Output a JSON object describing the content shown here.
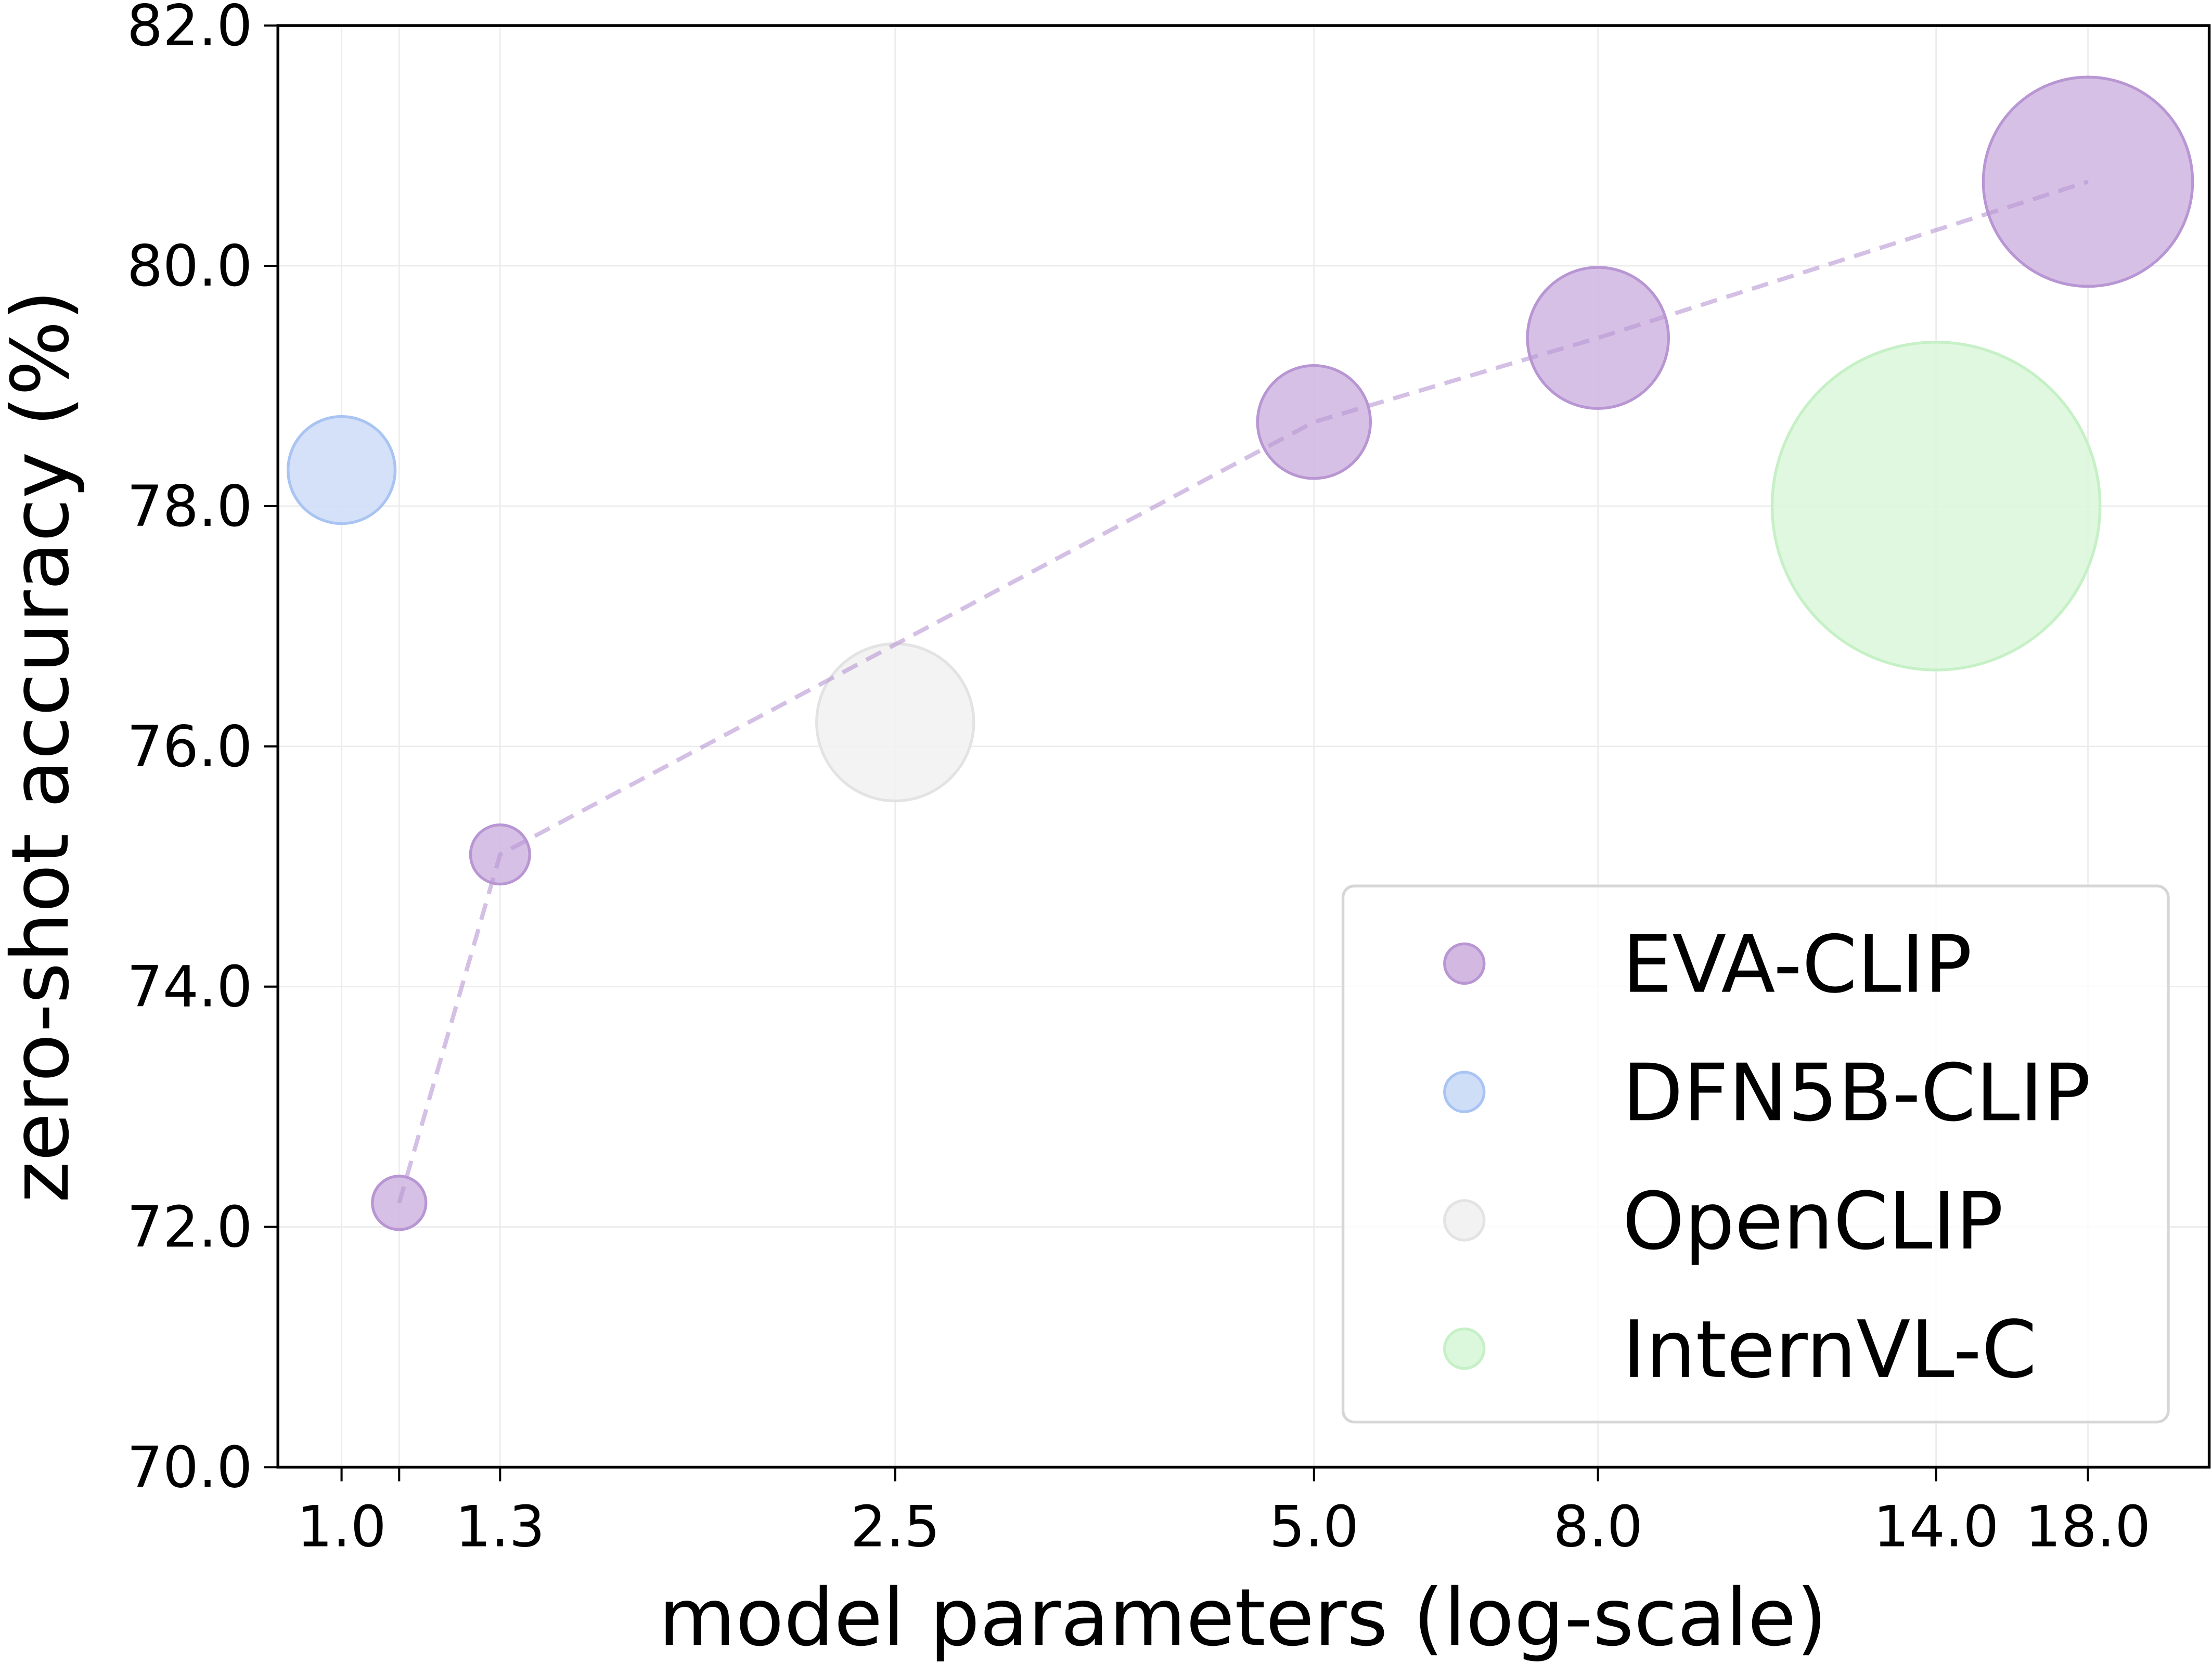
{
  "chart_data": {
    "type": "scatter",
    "title": "",
    "xlabel": "model parameters (log-scale)",
    "ylabel": "zero-shot accuracy (%)",
    "xscale": "log",
    "xlim": [
      0.9,
      22.0
    ],
    "ylim": [
      70.0,
      82.0
    ],
    "xticks": [
      1.0,
      1.1,
      1.3,
      2.5,
      5.0,
      8.0,
      14.0,
      18.0
    ],
    "xtick_labels": [
      "1.0",
      "",
      "1.3",
      "2.5",
      "5.0",
      "8.0",
      "14.0",
      "18.0"
    ],
    "yticks": [
      70,
      72,
      74,
      76,
      78,
      80,
      82
    ],
    "ytick_labels": [
      "70.0",
      "72.0",
      "74.0",
      "76.0",
      "78.0",
      "80.0",
      "82.0"
    ],
    "grid": true,
    "legend_placement": "lower-right",
    "series": [
      {
        "name": "EVA-CLIP",
        "color": "#d3b9e2",
        "edge_color": "#b896d3",
        "x": [
          1.1,
          1.3,
          5.0,
          8.0,
          18.0
        ],
        "y": [
          72.2,
          75.1,
          78.7,
          79.4,
          80.7
        ],
        "bubble_size": [
          3.6,
          4.4,
          16,
          25,
          55
        ],
        "connected": "dashed"
      },
      {
        "name": "DFN5B-CLIP",
        "color": "#cfdef7",
        "edge_color": "#a9c4f2",
        "x": [
          1.0
        ],
        "y": [
          78.3
        ],
        "bubble_size": [
          14.4
        ]
      },
      {
        "name": "OpenCLIP",
        "color": "#f2f2f2",
        "edge_color": "#e3e3e3",
        "x": [
          2.5
        ],
        "y": [
          76.2
        ],
        "bubble_size": [
          31
        ]
      },
      {
        "name": "InternVL-C",
        "color": "#dbf7dc",
        "edge_color": "#c6f0c6",
        "x": [
          14.0
        ],
        "y": [
          78.0
        ],
        "bubble_size": [
          135
        ]
      }
    ]
  }
}
